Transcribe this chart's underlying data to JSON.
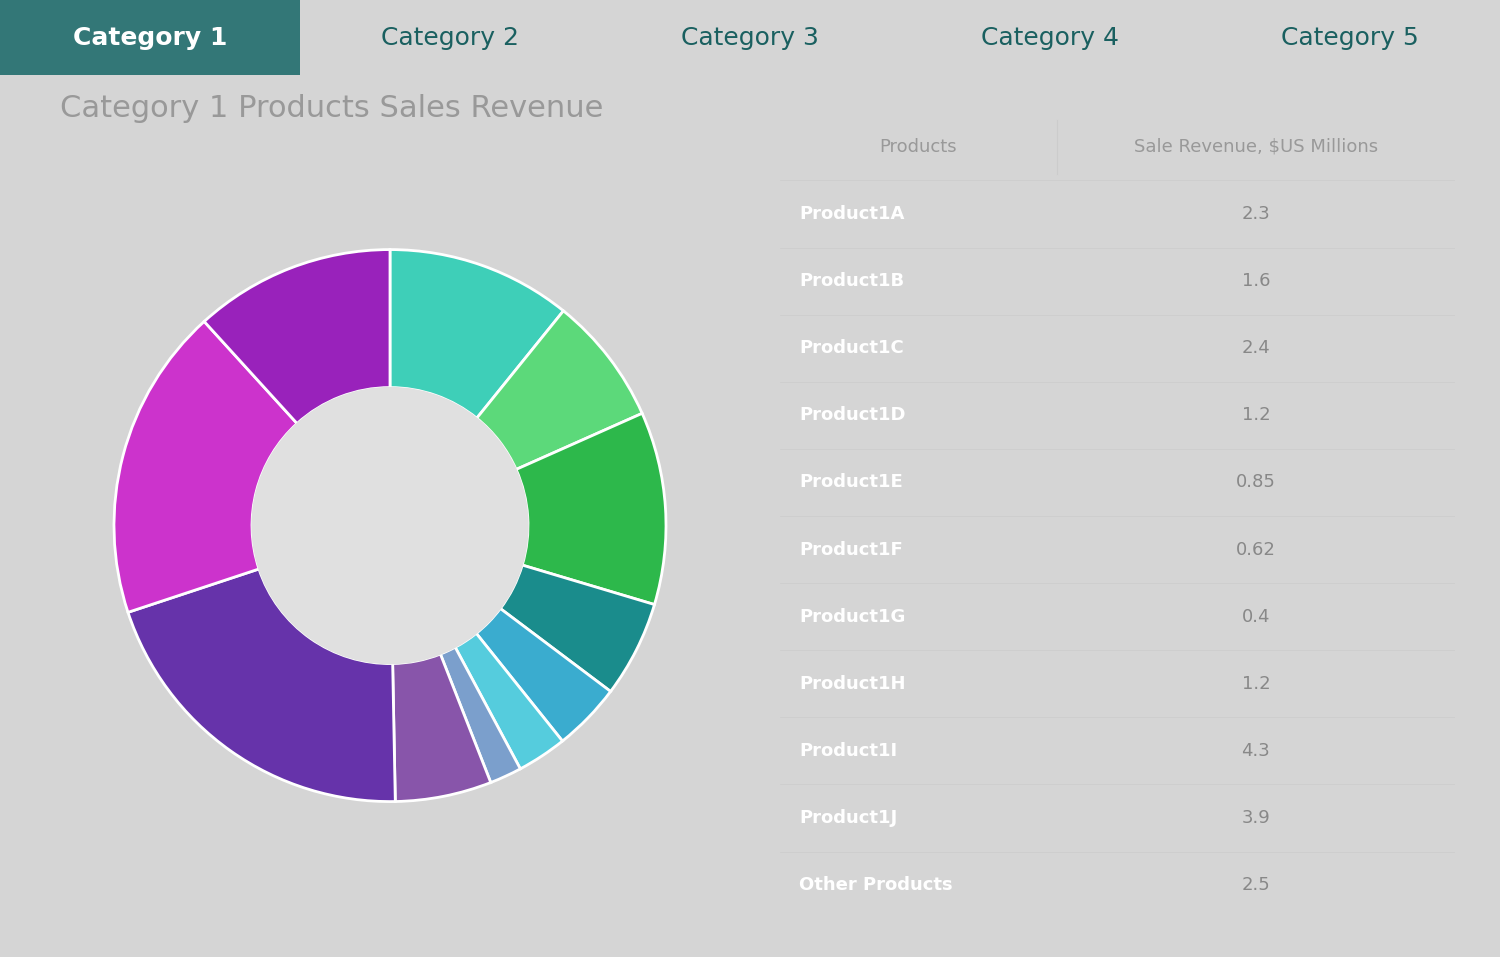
{
  "title": "Category 1 Products Sales Revenue",
  "tab_labels": [
    "Category 1",
    "Category 2",
    "Category 3",
    "Category 4",
    "Category 5"
  ],
  "active_tab": 0,
  "tab_active_color": "#337777",
  "tab_inactive_color": "#45D4C8",
  "tab_active_text_color": "#ffffff",
  "tab_inactive_text_color": "#1A6060",
  "background_color": "#D5D5D5",
  "products": [
    "Product1A",
    "Product1B",
    "Product1C",
    "Product1D",
    "Product1E",
    "Product1F",
    "Product1G",
    "Product1H",
    "Product1I",
    "Product1J",
    "Other Products"
  ],
  "values": [
    2.3,
    1.6,
    2.4,
    1.2,
    0.85,
    0.62,
    0.4,
    1.2,
    4.3,
    3.9,
    2.5
  ],
  "colors": [
    "#3ECFB8",
    "#5CD97A",
    "#2DB84B",
    "#1A8C8C",
    "#3AACCF",
    "#55CCDD",
    "#7B9FCC",
    "#8855AA",
    "#6633AA",
    "#CC33CC",
    "#9922BB"
  ],
  "table_header_bg": "#f2f2f2",
  "table_header_text": "#999999",
  "table_col1_header": "Products",
  "table_col2_header": "Sale Revenue, $US Millions",
  "table_value_color": "#888888",
  "donut_hole_color": "#E0E0E0",
  "title_color": "#999999",
  "title_fontsize": 22,
  "tab_fontsize": 18,
  "table_fontsize": 13
}
